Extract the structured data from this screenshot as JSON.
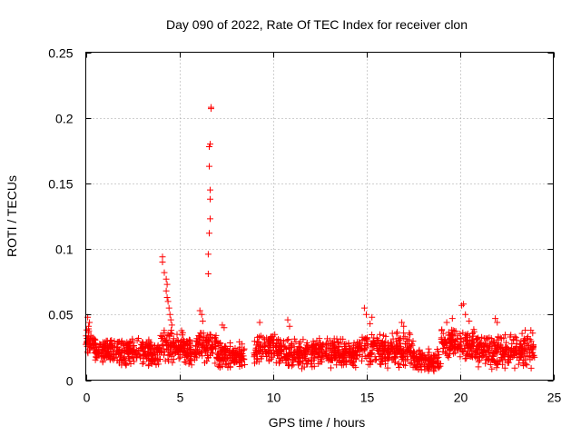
{
  "chart_data": {
    "type": "scatter",
    "title": "Day 090 of 2022, Rate Of TEC Index for receiver clon",
    "xlabel": "GPS time / hours",
    "ylabel": "ROTI / TECUs",
    "xlim": [
      0,
      25
    ],
    "ylim": [
      0,
      0.25
    ],
    "xticks": [
      0,
      5,
      10,
      15,
      20,
      25
    ],
    "yticks": [
      0,
      0.05,
      0.1,
      0.15,
      0.2,
      0.25
    ],
    "xtick_labels": [
      "0",
      "5",
      "10",
      "15",
      "20",
      "25"
    ],
    "ytick_labels": [
      "0",
      "0.05",
      "0.1",
      "0.15",
      "0.2",
      "0.25"
    ],
    "grid": true,
    "marker": "+",
    "marker_color": "#ff0000",
    "series": [
      {
        "name": "ROTI",
        "note": "dense band of approx. 2000 points between 0.01 and 0.035 TECU/s over 0-24 h; the highlighted points are the visible peaks",
        "peaks": [
          {
            "x": 0.1,
            "y": 0.048
          },
          {
            "x": 0.2,
            "y": 0.044
          },
          {
            "x": 0.15,
            "y": 0.041
          },
          {
            "x": 4.1,
            "y": 0.094
          },
          {
            "x": 4.1,
            "y": 0.09
          },
          {
            "x": 4.2,
            "y": 0.082
          },
          {
            "x": 4.3,
            "y": 0.077
          },
          {
            "x": 4.35,
            "y": 0.073
          },
          {
            "x": 4.3,
            "y": 0.068
          },
          {
            "x": 4.35,
            "y": 0.063
          },
          {
            "x": 4.4,
            "y": 0.06
          },
          {
            "x": 4.45,
            "y": 0.055
          },
          {
            "x": 4.5,
            "y": 0.05
          },
          {
            "x": 4.55,
            "y": 0.046
          },
          {
            "x": 4.6,
            "y": 0.042
          },
          {
            "x": 6.1,
            "y": 0.053
          },
          {
            "x": 6.2,
            "y": 0.05
          },
          {
            "x": 6.25,
            "y": 0.045
          },
          {
            "x": 6.55,
            "y": 0.081
          },
          {
            "x": 6.55,
            "y": 0.096
          },
          {
            "x": 6.6,
            "y": 0.112
          },
          {
            "x": 6.65,
            "y": 0.123
          },
          {
            "x": 6.65,
            "y": 0.138
          },
          {
            "x": 6.65,
            "y": 0.145
          },
          {
            "x": 6.6,
            "y": 0.163
          },
          {
            "x": 6.6,
            "y": 0.178
          },
          {
            "x": 6.65,
            "y": 0.18
          },
          {
            "x": 6.7,
            "y": 0.207
          },
          {
            "x": 6.7,
            "y": 0.208
          },
          {
            "x": 7.3,
            "y": 0.042
          },
          {
            "x": 7.4,
            "y": 0.04
          },
          {
            "x": 9.3,
            "y": 0.044
          },
          {
            "x": 10.8,
            "y": 0.046
          },
          {
            "x": 10.9,
            "y": 0.041
          },
          {
            "x": 14.9,
            "y": 0.055
          },
          {
            "x": 15.0,
            "y": 0.05
          },
          {
            "x": 15.3,
            "y": 0.048
          },
          {
            "x": 15.2,
            "y": 0.043
          },
          {
            "x": 16.9,
            "y": 0.044
          },
          {
            "x": 17.0,
            "y": 0.041
          },
          {
            "x": 19.3,
            "y": 0.044
          },
          {
            "x": 19.6,
            "y": 0.047
          },
          {
            "x": 20.1,
            "y": 0.057
          },
          {
            "x": 20.2,
            "y": 0.058
          },
          {
            "x": 20.3,
            "y": 0.05
          },
          {
            "x": 20.5,
            "y": 0.045
          },
          {
            "x": 21.9,
            "y": 0.047
          },
          {
            "x": 22.0,
            "y": 0.044
          },
          {
            "x": 23.5,
            "y": 0.038
          },
          {
            "x": 23.8,
            "y": 0.038
          }
        ],
        "baseline_segments": [
          {
            "x0": 0.0,
            "x1": 0.5,
            "lo": 0.018,
            "hi": 0.04
          },
          {
            "x0": 0.5,
            "x1": 3.5,
            "lo": 0.01,
            "hi": 0.033
          },
          {
            "x0": 3.5,
            "x1": 4.0,
            "lo": 0.01,
            "hi": 0.03
          },
          {
            "x0": 4.0,
            "x1": 5.2,
            "lo": 0.012,
            "hi": 0.04
          },
          {
            "x0": 5.2,
            "x1": 6.0,
            "lo": 0.01,
            "hi": 0.034
          },
          {
            "x0": 6.0,
            "x1": 7.0,
            "lo": 0.012,
            "hi": 0.038
          },
          {
            "x0": 7.0,
            "x1": 8.5,
            "lo": 0.008,
            "hi": 0.03
          },
          {
            "x0": 9.0,
            "x1": 10.5,
            "lo": 0.012,
            "hi": 0.036
          },
          {
            "x0": 10.5,
            "x1": 14.5,
            "lo": 0.008,
            "hi": 0.033
          },
          {
            "x0": 14.5,
            "x1": 17.5,
            "lo": 0.008,
            "hi": 0.038
          },
          {
            "x0": 17.5,
            "x1": 19.0,
            "lo": 0.006,
            "hi": 0.025
          },
          {
            "x0": 19.0,
            "x1": 20.8,
            "lo": 0.015,
            "hi": 0.042
          },
          {
            "x0": 20.8,
            "x1": 24.0,
            "lo": 0.008,
            "hi": 0.036
          }
        ]
      }
    ]
  }
}
